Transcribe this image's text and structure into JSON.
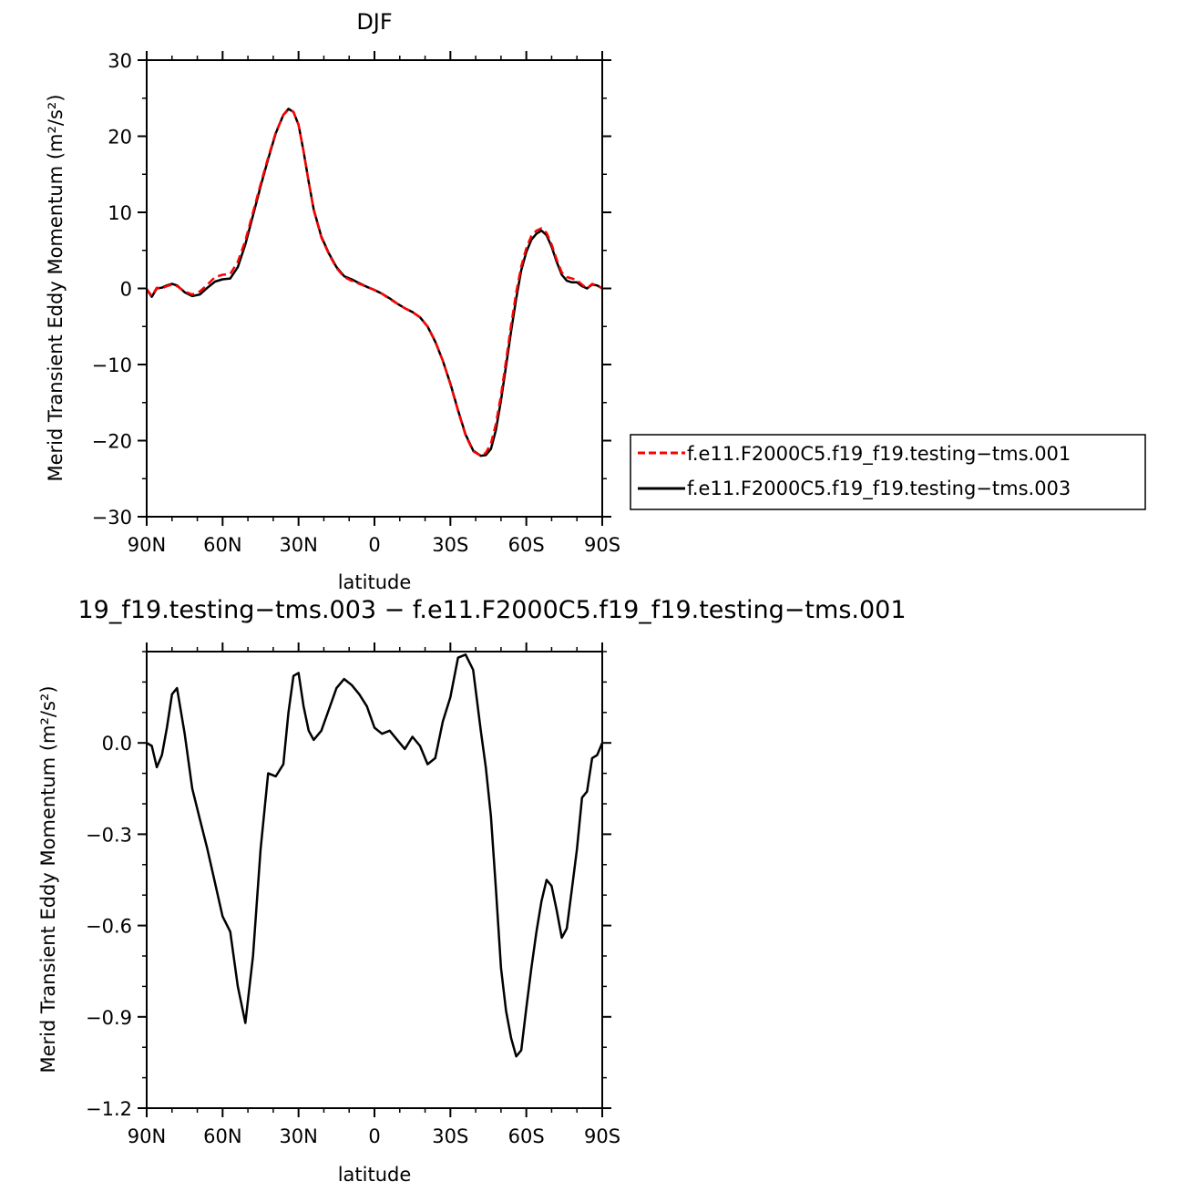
{
  "chart_data": [
    {
      "type": "line",
      "title": "DJF",
      "xlabel": "latitude",
      "ylabel": "Merid Transient Eddy Momentum (m²/s²)",
      "xlim": [
        -90,
        90
      ],
      "ylim": [
        -30,
        30
      ],
      "x_ticks": [
        {
          "value": -90,
          "label": "90N"
        },
        {
          "value": -60,
          "label": "60N"
        },
        {
          "value": -30,
          "label": "30N"
        },
        {
          "value": 0,
          "label": "0"
        },
        {
          "value": 30,
          "label": "30S"
        },
        {
          "value": 60,
          "label": "60S"
        },
        {
          "value": 90,
          "label": "90S"
        }
      ],
      "y_ticks": [
        {
          "value": 30,
          "label": "30"
        },
        {
          "value": 20,
          "label": "20"
        },
        {
          "value": 10,
          "label": "10"
        },
        {
          "value": 0,
          "label": "0"
        },
        {
          "value": -10,
          "label": "−10"
        },
        {
          "value": -20,
          "label": "−20"
        },
        {
          "value": -30,
          "label": "−30"
        }
      ],
      "legend_position": "right",
      "series": [
        {
          "name": "f.e11.F2000C5.f19_f19.testing−tms.001",
          "color": "#ff0000",
          "dash": "dashed",
          "x": [
            -90,
            -88,
            -86,
            -84,
            -82,
            -80,
            -78,
            -75,
            -72,
            -69,
            -66,
            -63,
            -60,
            -57,
            -54,
            -51,
            -48,
            -45,
            -42,
            -39,
            -36,
            -34,
            -32,
            -30,
            -28,
            -26,
            -24,
            -21,
            -18,
            -15,
            -12,
            -9,
            -6,
            -3,
            0,
            3,
            6,
            9,
            12,
            15,
            18,
            21,
            24,
            27,
            30,
            33,
            36,
            39,
            42,
            44,
            46,
            48,
            50,
            52,
            54,
            56,
            58,
            60,
            62,
            64,
            66,
            68,
            70,
            72,
            74,
            76,
            78,
            80,
            82,
            84,
            86,
            88,
            90
          ],
          "y": [
            -0.1,
            -1.0,
            0.1,
            0.0,
            0.3,
            0.5,
            0.3,
            -0.4,
            -0.8,
            -0.4,
            0.5,
            1.5,
            1.8,
            1.9,
            3.5,
            6.3,
            10.0,
            13.7,
            17.2,
            20.5,
            22.8,
            23.5,
            23.2,
            21.5,
            18.0,
            14.0,
            10.3,
            6.7,
            4.5,
            2.7,
            1.5,
            1.0,
            0.6,
            0.2,
            -0.2,
            -0.7,
            -1.4,
            -2.0,
            -2.6,
            -3.1,
            -3.8,
            -5.0,
            -6.9,
            -9.5,
            -12.6,
            -16.1,
            -19.3,
            -21.4,
            -22.0,
            -21.6,
            -20.4,
            -17.8,
            -14.0,
            -9.5,
            -4.8,
            -0.5,
            2.9,
            5.3,
            6.9,
            7.6,
            7.9,
            7.3,
            5.8,
            3.8,
            2.1,
            1.5,
            1.3,
            1.1,
            0.5,
            0.0,
            0.6,
            0.4,
            0.0
          ]
        },
        {
          "name": "f.e11.F2000C5.f19_f19.testing−tms.003",
          "color": "#000000",
          "dash": "solid",
          "x": [
            -90,
            -88,
            -86,
            -84,
            -82,
            -80,
            -78,
            -75,
            -72,
            -69,
            -66,
            -63,
            -60,
            -57,
            -54,
            -51,
            -48,
            -45,
            -42,
            -39,
            -36,
            -34,
            -32,
            -30,
            -28,
            -26,
            -24,
            -21,
            -18,
            -15,
            -12,
            -9,
            -6,
            -3,
            0,
            3,
            6,
            9,
            12,
            15,
            18,
            21,
            24,
            27,
            30,
            33,
            36,
            39,
            42,
            44,
            46,
            48,
            50,
            52,
            54,
            56,
            58,
            60,
            62,
            64,
            66,
            68,
            70,
            72,
            74,
            76,
            78,
            80,
            82,
            84,
            86,
            88,
            90
          ],
          "y": [
            -0.1,
            -1.1,
            0.0,
            0.1,
            0.4,
            0.6,
            0.4,
            -0.5,
            -1.0,
            -0.8,
            0.1,
            0.9,
            1.2,
            1.3,
            2.8,
            5.8,
            9.6,
            13.4,
            17.0,
            20.4,
            22.8,
            23.6,
            23.2,
            21.5,
            18.0,
            14.0,
            10.4,
            6.8,
            4.6,
            2.8,
            1.6,
            1.2,
            0.7,
            0.2,
            -0.2,
            -0.7,
            -1.3,
            -2.0,
            -2.6,
            -3.1,
            -3.8,
            -5.0,
            -7.0,
            -9.5,
            -12.5,
            -16.0,
            -19.2,
            -21.3,
            -22.0,
            -21.9,
            -21.1,
            -18.6,
            -14.7,
            -10.2,
            -5.6,
            -1.3,
            2.4,
            4.8,
            6.4,
            7.2,
            7.6,
            7.0,
            5.5,
            3.5,
            1.8,
            1.0,
            0.8,
            0.8,
            0.3,
            0.0,
            0.5,
            0.4,
            0.0
          ]
        }
      ]
    },
    {
      "type": "line",
      "title": "19_f19.testing−tms.003 − f.e11.F2000C5.f19_f19.testing−tms.001",
      "xlabel": "latitude",
      "ylabel": "Merid Transient Eddy Momentum (m²/s²)",
      "xlim": [
        -90,
        90
      ],
      "ylim": [
        -1.2,
        0.3
      ],
      "x_ticks": [
        {
          "value": -90,
          "label": "90N"
        },
        {
          "value": -60,
          "label": "60N"
        },
        {
          "value": -30,
          "label": "30N"
        },
        {
          "value": 0,
          "label": "0"
        },
        {
          "value": 30,
          "label": "30S"
        },
        {
          "value": 60,
          "label": "60S"
        },
        {
          "value": 90,
          "label": "90S"
        }
      ],
      "y_ticks": [
        {
          "value": 0.0,
          "label": "0.0"
        },
        {
          "value": -0.3,
          "label": "−0.3"
        },
        {
          "value": -0.6,
          "label": "−0.6"
        },
        {
          "value": -0.9,
          "label": "−0.9"
        },
        {
          "value": -1.2,
          "label": "−1.2"
        }
      ],
      "series": [
        {
          "color": "#000000",
          "dash": "solid",
          "x": [
            -90,
            -88,
            -86,
            -84,
            -82,
            -80,
            -78,
            -75,
            -72,
            -69,
            -66,
            -63,
            -60,
            -57,
            -54,
            -51,
            -48,
            -45,
            -42,
            -39,
            -36,
            -34,
            -32,
            -30,
            -28,
            -26,
            -24,
            -21,
            -18,
            -15,
            -12,
            -9,
            -6,
            -3,
            0,
            3,
            6,
            9,
            12,
            15,
            18,
            21,
            24,
            27,
            30,
            33,
            36,
            39,
            42,
            44,
            46,
            48,
            50,
            52,
            54,
            56,
            58,
            60,
            62,
            64,
            66,
            68,
            70,
            72,
            74,
            76,
            78,
            80,
            82,
            84,
            86,
            88,
            90
          ],
          "y": [
            0.0,
            -0.01,
            -0.08,
            -0.04,
            0.05,
            0.16,
            0.18,
            0.03,
            -0.15,
            -0.25,
            -0.35,
            -0.46,
            -0.57,
            -0.62,
            -0.8,
            -0.92,
            -0.7,
            -0.35,
            -0.1,
            -0.11,
            -0.07,
            0.1,
            0.22,
            0.23,
            0.12,
            0.04,
            0.01,
            0.04,
            0.11,
            0.18,
            0.21,
            0.19,
            0.16,
            0.12,
            0.05,
            0.03,
            0.04,
            0.01,
            -0.02,
            0.02,
            -0.01,
            -0.07,
            -0.05,
            0.07,
            0.15,
            0.28,
            0.29,
            0.24,
            0.04,
            -0.08,
            -0.24,
            -0.48,
            -0.74,
            -0.88,
            -0.97,
            -1.03,
            -1.01,
            -0.87,
            -0.74,
            -0.62,
            -0.52,
            -0.45,
            -0.47,
            -0.55,
            -0.64,
            -0.61,
            -0.48,
            -0.35,
            -0.18,
            -0.16,
            -0.05,
            -0.04,
            0.0
          ]
        }
      ]
    }
  ]
}
